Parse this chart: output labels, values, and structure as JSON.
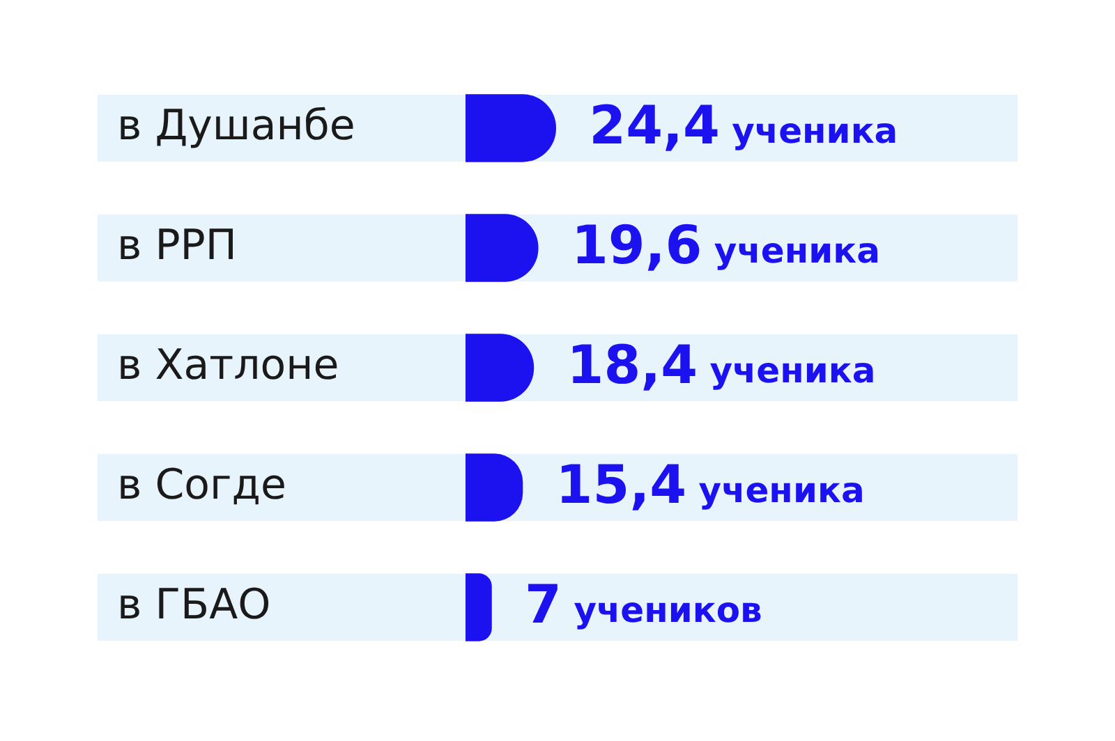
{
  "chart_data": {
    "type": "bar",
    "orientation": "horizontal",
    "categories": [
      "в Душанбе",
      "в РРП",
      "в Хатлоне",
      "в Согде",
      "в ГБАО"
    ],
    "values": [
      24.4,
      19.6,
      18.4,
      15.4,
      7
    ],
    "color": "#1c12f0",
    "value_labels": [
      "24,4 ученика",
      "19,6 ученика",
      "18,4 ученика",
      "15,4 ученика",
      "7 учеников"
    ],
    "tick_labels": "y",
    "legend": false
  }
}
